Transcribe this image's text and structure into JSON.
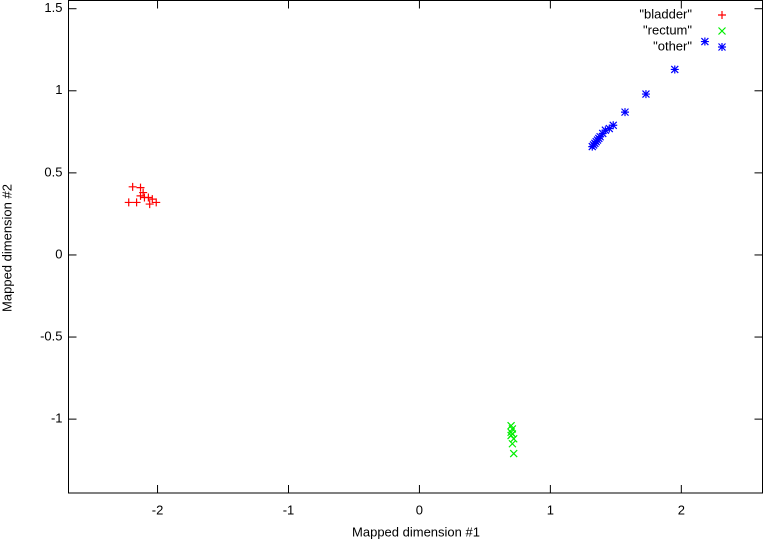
{
  "chart_data": {
    "type": "scatter",
    "xlabel": "Mapped dimension #1",
    "ylabel": "Mapped dimension #2",
    "xlim": [
      -2.68,
      2.62
    ],
    "ylim": [
      -1.45,
      1.55
    ],
    "xticks": [
      -2,
      -1,
      0,
      1,
      2
    ],
    "yticks": [
      -1,
      -0.5,
      0,
      0.5,
      1,
      1.5
    ],
    "legend": "top-right",
    "series": [
      {
        "name": "\"bladder\"",
        "color": "#ff0000",
        "marker": "plus",
        "x": [
          -2.19,
          -2.13,
          -2.11,
          -2.22,
          -2.16,
          -2.07,
          -2.04,
          -2.01,
          -2.06,
          -2.13,
          -2.1
        ],
        "y": [
          0.415,
          0.41,
          0.38,
          0.32,
          0.32,
          0.35,
          0.34,
          0.32,
          0.31,
          0.36,
          0.35
        ]
      },
      {
        "name": "\"rectum\"",
        "color": "#00ee00",
        "marker": "cross",
        "x": [
          0.7,
          0.71,
          0.7,
          0.71,
          0.7,
          0.72,
          0.71,
          0.72
        ],
        "y": [
          -1.04,
          -1.06,
          -1.08,
          -1.09,
          -1.1,
          -1.12,
          -1.15,
          -1.21
        ]
      },
      {
        "name": "\"other\"",
        "color": "#0000ff",
        "marker": "star",
        "x": [
          1.32,
          1.33,
          1.34,
          1.35,
          1.36,
          1.37,
          1.38,
          1.4,
          1.42,
          1.45,
          1.48,
          1.57,
          1.73,
          1.95,
          2.18
        ],
        "y": [
          0.66,
          0.67,
          0.68,
          0.69,
          0.7,
          0.71,
          0.72,
          0.74,
          0.76,
          0.77,
          0.79,
          0.87,
          0.98,
          1.13,
          1.3
        ]
      }
    ]
  }
}
